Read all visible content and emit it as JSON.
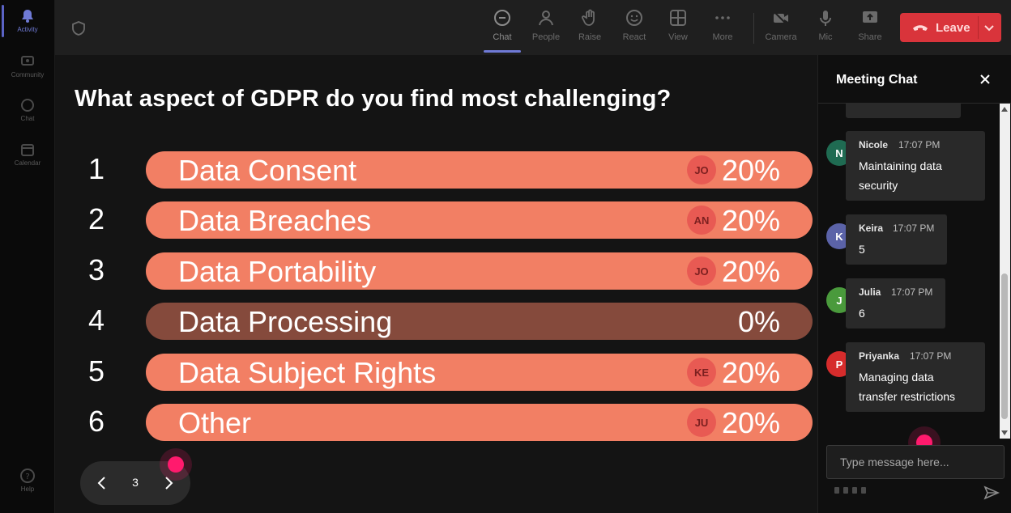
{
  "rail": {
    "items": [
      {
        "label": "Activity",
        "icon": "bell-icon"
      },
      {
        "label": "Community",
        "icon": "community-icon"
      },
      {
        "label": "Chat",
        "icon": "chat-icon"
      },
      {
        "label": "Calendar",
        "icon": "calendar-icon"
      }
    ],
    "help_label": "Help"
  },
  "toolbar": {
    "chat": "Chat",
    "people": "People",
    "raise": "Raise",
    "react": "React",
    "view": "View",
    "more": "More",
    "camera": "Camera",
    "mic": "Mic",
    "share": "Share",
    "leave": "Leave"
  },
  "poll": {
    "question": "What aspect of GDPR do you find most challenging?",
    "options": [
      {
        "num": "1",
        "label": "Data Consent",
        "badge": "JO",
        "percent": "20%"
      },
      {
        "num": "2",
        "label": "Data Breaches",
        "badge": "AN",
        "percent": "20%"
      },
      {
        "num": "3",
        "label": "Data Portability",
        "badge": "JO",
        "percent": "20%"
      },
      {
        "num": "4",
        "label": "Data Processing",
        "badge": "",
        "percent": "0%"
      },
      {
        "num": "5",
        "label": "Data Subject Rights",
        "badge": "KE",
        "percent": "20%"
      },
      {
        "num": "6",
        "label": "Other",
        "badge": "JU",
        "percent": "20%"
      }
    ]
  },
  "pager": {
    "page": "3"
  },
  "chat": {
    "title": "Meeting Chat",
    "messages": [
      {
        "initial": "N",
        "name": "Nicole",
        "time": "17:07 PM",
        "line1": "Maintaining data",
        "line2": "security",
        "color": "#1f6b52"
      },
      {
        "initial": "K",
        "name": "Keira",
        "time": "17:07 PM",
        "line1": "5",
        "line2": "",
        "color": "#5b63a8"
      },
      {
        "initial": "J",
        "name": "Julia",
        "time": "17:07 PM",
        "line1": "6",
        "line2": "",
        "color": "#4a9a3c"
      },
      {
        "initial": "P",
        "name": "Priyanka",
        "time": "17:07 PM",
        "line1": "Managing data",
        "line2": "transfer restrictions",
        "color": "#d62c2c"
      }
    ],
    "input_placeholder": "Type message here..."
  }
}
